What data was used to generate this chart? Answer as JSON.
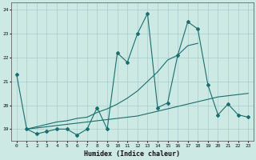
{
  "xlabel": "Humidex (Indice chaleur)",
  "xlim": [
    -0.5,
    23.5
  ],
  "ylim": [
    18.5,
    24.3
  ],
  "yticks": [
    19,
    20,
    21,
    22,
    23,
    24
  ],
  "xticks": [
    0,
    1,
    2,
    3,
    4,
    5,
    6,
    7,
    8,
    9,
    10,
    11,
    12,
    13,
    14,
    15,
    16,
    17,
    18,
    19,
    20,
    21,
    22,
    23
  ],
  "bg_color": "#cce9e4",
  "grid_color": "#aacccc",
  "line_color": "#1a6e6e",
  "line1_x": [
    0,
    1,
    2,
    3,
    4,
    5,
    6,
    7,
    8,
    9,
    10,
    11,
    12,
    13,
    14,
    15,
    16,
    17,
    18,
    19,
    20,
    21,
    22,
    23
  ],
  "line1_y": [
    21.3,
    19.0,
    18.8,
    18.9,
    19.0,
    19.0,
    18.75,
    19.0,
    19.9,
    19.0,
    22.2,
    21.8,
    23.0,
    23.85,
    19.9,
    20.1,
    22.1,
    23.5,
    23.2,
    20.85,
    19.6,
    20.05,
    19.6,
    19.5
  ],
  "line2_x": [
    1,
    2,
    3,
    4,
    5,
    6,
    7,
    8,
    9,
    10,
    11,
    12,
    13,
    14,
    15,
    16,
    17,
    18
  ],
  "line2_y": [
    19.0,
    19.1,
    19.2,
    19.3,
    19.35,
    19.45,
    19.5,
    19.7,
    19.85,
    20.05,
    20.3,
    20.6,
    21.0,
    21.4,
    21.9,
    22.1,
    22.5,
    22.6
  ],
  "line3_x": [
    1,
    2,
    3,
    4,
    5,
    6,
    7,
    8,
    9,
    10,
    11,
    12,
    13,
    14,
    15,
    16,
    17,
    18,
    19,
    20,
    21,
    22,
    23
  ],
  "line3_y": [
    19.0,
    19.05,
    19.1,
    19.15,
    19.2,
    19.25,
    19.3,
    19.35,
    19.4,
    19.45,
    19.5,
    19.55,
    19.65,
    19.75,
    19.85,
    19.95,
    20.05,
    20.15,
    20.25,
    20.35,
    20.4,
    20.45,
    20.5
  ]
}
